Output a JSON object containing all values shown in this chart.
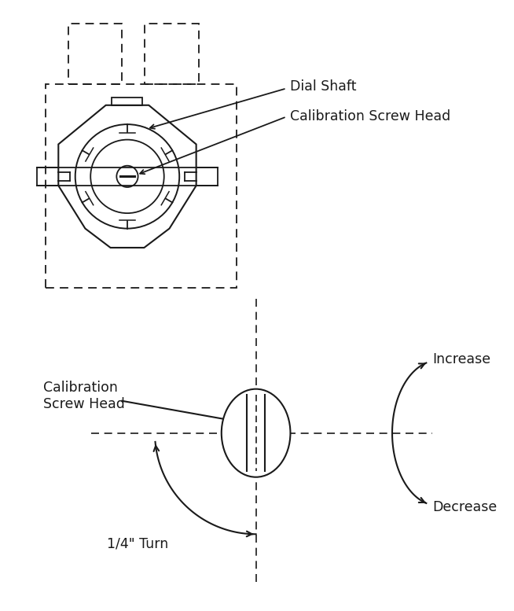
{
  "bg_color": "#ffffff",
  "line_color": "#1a1a1a",
  "fig_width": 6.54,
  "fig_height": 7.77,
  "top_diagram": {
    "label_dial_shaft": "Dial Shaft",
    "label_cal_screw": "Calibration Screw Head"
  },
  "bottom_diagram": {
    "label_cal_screw": "Calibration\nScrew Head",
    "label_increase": "Increase",
    "label_decrease": "Decrease",
    "label_quarter_turn": "1/4\" Turn"
  }
}
